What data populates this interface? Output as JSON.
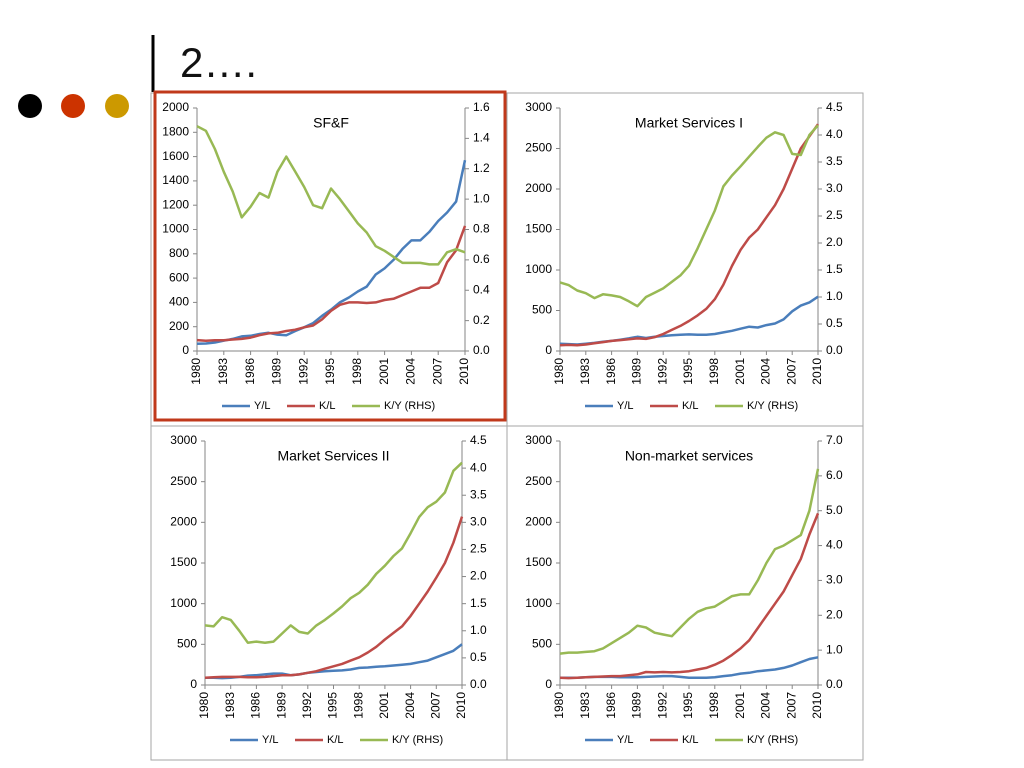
{
  "slide": {
    "title": "2…."
  },
  "chart_data": [
    {
      "type": "line",
      "title": "SF&F",
      "x": [
        1980,
        1981,
        1982,
        1983,
        1984,
        1985,
        1986,
        1987,
        1988,
        1989,
        1990,
        1991,
        1992,
        1993,
        1994,
        1995,
        1996,
        1997,
        1998,
        1999,
        2000,
        2001,
        2002,
        2003,
        2004,
        2005,
        2006,
        2007,
        2008,
        2009,
        2010
      ],
      "xlim": [
        1980,
        2010
      ],
      "xticks": [
        1980,
        1983,
        1986,
        1989,
        1992,
        1995,
        1998,
        2001,
        2004,
        2007,
        2010
      ],
      "ylim": [
        0,
        2000
      ],
      "yticks": [
        0,
        200,
        400,
        600,
        800,
        1000,
        1200,
        1400,
        1600,
        1800,
        2000
      ],
      "y2lim": [
        0,
        1.6
      ],
      "y2ticks": [
        {
          "value": 0,
          "label": "0.0"
        },
        0.2,
        0.4,
        0.6,
        0.8,
        {
          "value": 1,
          "label": "1.0"
        },
        1.2,
        1.4,
        1.6
      ],
      "series": [
        {
          "name": "Y/L",
          "color": "#4a7ebb",
          "values": [
            60,
            62,
            70,
            85,
            100,
            120,
            125,
            140,
            150,
            135,
            130,
            165,
            195,
            230,
            290,
            340,
            400,
            440,
            490,
            530,
            630,
            680,
            750,
            840,
            910,
            910,
            980,
            1070,
            1140,
            1230,
            1570
          ]
        },
        {
          "name": "K/L",
          "color": "#be4b48",
          "values": [
            90,
            85,
            88,
            88,
            95,
            100,
            110,
            130,
            145,
            150,
            165,
            175,
            195,
            210,
            260,
            330,
            380,
            400,
            400,
            395,
            400,
            420,
            430,
            460,
            490,
            520,
            520,
            560,
            730,
            830,
            1030
          ]
        },
        {
          "name": "K/Y (RHS)",
          "color": "#98b954",
          "axis": "y2",
          "values": [
            1.48,
            1.45,
            1.33,
            1.18,
            1.05,
            0.88,
            0.95,
            1.04,
            1.01,
            1.18,
            1.28,
            1.18,
            1.08,
            0.96,
            0.94,
            1.07,
            1.0,
            0.92,
            0.84,
            0.78,
            0.69,
            0.66,
            0.62,
            0.58,
            0.58,
            0.58,
            0.57,
            0.57,
            0.65,
            0.67,
            0.65
          ]
        }
      ]
    },
    {
      "type": "line",
      "title": "Market Services I",
      "x": [
        1980,
        1981,
        1982,
        1983,
        1984,
        1985,
        1986,
        1987,
        1988,
        1989,
        1990,
        1991,
        1992,
        1993,
        1994,
        1995,
        1996,
        1997,
        1998,
        1999,
        2000,
        2001,
        2002,
        2003,
        2004,
        2005,
        2006,
        2007,
        2008,
        2009,
        2010
      ],
      "xlim": [
        1980,
        2010
      ],
      "xticks": [
        1980,
        1983,
        1986,
        1989,
        1992,
        1995,
        1998,
        2001,
        2004,
        2007,
        2010
      ],
      "ylim": [
        0,
        3000
      ],
      "yticks": [
        0,
        500,
        1000,
        1500,
        2000,
        2500,
        3000
      ],
      "y2lim": [
        0,
        4.5
      ],
      "y2ticks": [
        {
          "value": 0,
          "label": "0.0"
        },
        0.5,
        {
          "value": 1,
          "label": "1.0"
        },
        1.5,
        {
          "value": 2,
          "label": "2.0"
        },
        2.5,
        {
          "value": 3,
          "label": "3.0"
        },
        3.5,
        {
          "value": 4,
          "label": "4.0"
        },
        4.5
      ],
      "series": [
        {
          "name": "Y/L",
          "color": "#4a7ebb",
          "values": [
            90,
            85,
            80,
            90,
            100,
            115,
            125,
            140,
            155,
            175,
            160,
            175,
            185,
            195,
            200,
            205,
            200,
            200,
            210,
            230,
            250,
            275,
            300,
            290,
            320,
            340,
            390,
            490,
            560,
            600,
            670
          ]
        },
        {
          "name": "K/L",
          "color": "#be4b48",
          "values": [
            70,
            75,
            70,
            80,
            95,
            110,
            125,
            135,
            145,
            155,
            150,
            170,
            210,
            260,
            310,
            370,
            440,
            520,
            640,
            820,
            1050,
            1250,
            1400,
            1500,
            1650,
            1800,
            2000,
            2250,
            2500,
            2650,
            2800
          ]
        },
        {
          "name": "K/Y (RHS)",
          "color": "#98b954",
          "axis": "y2",
          "values": [
            1.27,
            1.22,
            1.12,
            1.07,
            0.98,
            1.05,
            1.03,
            1.0,
            0.92,
            0.83,
            1.0,
            1.08,
            1.16,
            1.28,
            1.4,
            1.58,
            1.9,
            2.25,
            2.6,
            3.05,
            3.25,
            3.42,
            3.6,
            3.78,
            3.95,
            4.05,
            4.0,
            3.65,
            3.63,
            4.0,
            4.18
          ]
        }
      ]
    },
    {
      "type": "line",
      "title": "Market Services II",
      "x": [
        1980,
        1981,
        1982,
        1983,
        1984,
        1985,
        1986,
        1987,
        1988,
        1989,
        1990,
        1991,
        1992,
        1993,
        1994,
        1995,
        1996,
        1997,
        1998,
        1999,
        2000,
        2001,
        2002,
        2003,
        2004,
        2005,
        2006,
        2007,
        2008,
        2009,
        2010
      ],
      "xlim": [
        1980,
        2010
      ],
      "xticks": [
        1980,
        1983,
        1986,
        1989,
        1992,
        1995,
        1998,
        2001,
        2004,
        2007,
        2010
      ],
      "ylim": [
        0,
        3000
      ],
      "yticks": [
        0,
        500,
        1000,
        1500,
        2000,
        2500,
        3000
      ],
      "y2lim": [
        0,
        4.5
      ],
      "y2ticks": [
        {
          "value": 0,
          "label": "0.0"
        },
        0.5,
        {
          "value": 1,
          "label": "1.0"
        },
        1.5,
        {
          "value": 2,
          "label": "2.0"
        },
        2.5,
        {
          "value": 3,
          "label": "3.0"
        },
        3.5,
        {
          "value": 4,
          "label": "4.0"
        },
        4.5
      ],
      "series": [
        {
          "name": "Y/L",
          "color": "#4a7ebb",
          "values": [
            90,
            90,
            85,
            90,
            100,
            115,
            120,
            130,
            140,
            140,
            120,
            130,
            150,
            160,
            170,
            175,
            180,
            190,
            210,
            215,
            225,
            230,
            240,
            250,
            260,
            280,
            300,
            340,
            380,
            420,
            500
          ]
        },
        {
          "name": "K/L",
          "color": "#be4b48",
          "values": [
            90,
            95,
            100,
            100,
            100,
            95,
            95,
            100,
            110,
            120,
            120,
            130,
            150,
            170,
            200,
            230,
            260,
            300,
            340,
            400,
            470,
            560,
            640,
            720,
            850,
            1000,
            1150,
            1320,
            1500,
            1750,
            2070
          ]
        },
        {
          "name": "K/Y (RHS)",
          "color": "#98b954",
          "axis": "y2",
          "values": [
            1.1,
            1.08,
            1.25,
            1.2,
            1.0,
            0.78,
            0.8,
            0.78,
            0.8,
            0.95,
            1.1,
            0.98,
            0.95,
            1.1,
            1.2,
            1.32,
            1.45,
            1.6,
            1.7,
            1.85,
            2.05,
            2.2,
            2.38,
            2.52,
            2.8,
            3.1,
            3.28,
            3.38,
            3.55,
            3.95,
            4.1
          ]
        }
      ]
    },
    {
      "type": "line",
      "title": "Non-market services",
      "x": [
        1980,
        1981,
        1982,
        1983,
        1984,
        1985,
        1986,
        1987,
        1988,
        1989,
        1990,
        1991,
        1992,
        1993,
        1994,
        1995,
        1996,
        1997,
        1998,
        1999,
        2000,
        2001,
        2002,
        2003,
        2004,
        2005,
        2006,
        2007,
        2008,
        2009,
        2010
      ],
      "xlim": [
        1980,
        2010
      ],
      "xticks": [
        1980,
        1983,
        1986,
        1989,
        1992,
        1995,
        1998,
        2001,
        2004,
        2007,
        2010
      ],
      "ylim": [
        0,
        3000
      ],
      "yticks": [
        0,
        500,
        1000,
        1500,
        2000,
        2500,
        3000
      ],
      "y2lim": [
        0,
        7
      ],
      "y2ticks": [
        {
          "value": 0,
          "label": "0.0"
        },
        {
          "value": 1,
          "label": "1.0"
        },
        {
          "value": 2,
          "label": "2.0"
        },
        {
          "value": 3,
          "label": "3.0"
        },
        {
          "value": 4,
          "label": "4.0"
        },
        {
          "value": 5,
          "label": "5.0"
        },
        {
          "value": 6,
          "label": "6.0"
        },
        {
          "value": 7,
          "label": "7.0"
        }
      ],
      "series": [
        {
          "name": "Y/L",
          "color": "#4a7ebb",
          "values": [
            90,
            90,
            90,
            95,
            100,
            100,
            100,
            95,
            95,
            95,
            100,
            105,
            110,
            110,
            100,
            90,
            90,
            90,
            95,
            110,
            120,
            140,
            150,
            170,
            180,
            190,
            210,
            240,
            280,
            320,
            340
          ]
        },
        {
          "name": "K/L",
          "color": "#be4b48",
          "values": [
            90,
            85,
            90,
            95,
            100,
            105,
            110,
            110,
            120,
            130,
            160,
            155,
            160,
            155,
            160,
            170,
            190,
            210,
            250,
            300,
            370,
            450,
            550,
            700,
            850,
            1000,
            1150,
            1350,
            1550,
            1850,
            2110
          ]
        },
        {
          "name": "K/Y (RHS)",
          "color": "#98b954",
          "axis": "y2",
          "values": [
            0.9,
            0.93,
            0.93,
            0.95,
            0.97,
            1.05,
            1.2,
            1.35,
            1.5,
            1.7,
            1.65,
            1.5,
            1.45,
            1.4,
            1.65,
            1.9,
            2.1,
            2.2,
            2.25,
            2.4,
            2.55,
            2.6,
            2.6,
            3.0,
            3.5,
            3.9,
            4.0,
            4.15,
            4.3,
            5.0,
            6.2
          ]
        }
      ]
    }
  ]
}
